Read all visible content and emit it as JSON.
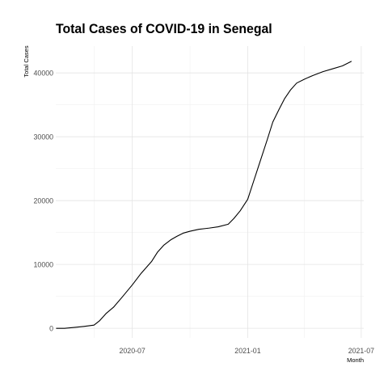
{
  "chart_data": {
    "type": "line",
    "title": "Total Cases of COVID-19 in Senegal",
    "xlabel": "Month",
    "ylabel": "Total Cases",
    "x_tick_labels": [
      "2020-07",
      "2021-01",
      "2021-07"
    ],
    "y_tick_labels": [
      "0",
      "10000",
      "20000",
      "30000",
      "40000"
    ],
    "xlim": [
      "2020-03-01",
      "2021-07-05"
    ],
    "ylim": [
      -1500,
      44200
    ],
    "grid": true,
    "x_ticks_date": [
      "2020-07-01",
      "2021-01-01",
      "2021-07-01"
    ],
    "y_ticks": [
      0,
      10000,
      20000,
      30000,
      40000
    ],
    "series": [
      {
        "color": "#000000",
        "x": [
          "2020-03-02",
          "2020-03-15",
          "2020-04-01",
          "2020-04-15",
          "2020-05-01",
          "2020-05-10",
          "2020-05-20",
          "2020-06-01",
          "2020-06-15",
          "2020-07-01",
          "2020-07-15",
          "2020-08-01",
          "2020-08-10",
          "2020-08-20",
          "2020-09-01",
          "2020-09-10",
          "2020-09-20",
          "2020-10-01",
          "2020-10-15",
          "2020-11-01",
          "2020-11-15",
          "2020-12-01",
          "2020-12-10",
          "2020-12-20",
          "2021-01-01",
          "2021-01-10",
          "2021-01-20",
          "2021-02-01",
          "2021-02-10",
          "2021-02-20",
          "2021-03-01",
          "2021-03-10",
          "2021-03-20",
          "2021-04-01",
          "2021-04-15",
          "2021-05-01",
          "2021-05-15",
          "2021-06-01",
          "2021-06-15"
        ],
        "y": [
          0,
          2,
          150,
          300,
          500,
          1200,
          2300,
          3300,
          4900,
          6800,
          8600,
          10500,
          11900,
          13000,
          13900,
          14400,
          14900,
          15200,
          15500,
          15700,
          15900,
          16300,
          17200,
          18400,
          20200,
          22900,
          25900,
          29500,
          32300,
          34300,
          36000,
          37300,
          38400,
          39000,
          39600,
          40200,
          40600,
          41100,
          41800
        ]
      }
    ]
  }
}
